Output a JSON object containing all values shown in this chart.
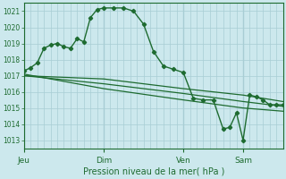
{
  "bg_color": "#cce8ed",
  "grid_color": "#a8cdd4",
  "line_color": "#1e6b30",
  "title": "Pression niveau de la mer( hPa )",
  "ylabel_vals": [
    1013,
    1014,
    1015,
    1016,
    1017,
    1018,
    1019,
    1020,
    1021
  ],
  "ylim": [
    1012.5,
    1021.5
  ],
  "xlim": [
    0,
    156
  ],
  "xtick_positions": [
    0,
    48,
    96,
    132
  ],
  "xtick_labels": [
    "Jeu",
    "Dim",
    "Ven",
    "Sam"
  ],
  "series1_x": [
    0,
    4,
    8,
    12,
    16,
    20,
    24,
    28,
    32,
    36,
    40,
    44,
    48,
    54,
    60,
    66,
    72,
    78,
    84,
    90,
    96,
    102,
    108,
    114,
    120,
    124,
    128,
    132,
    136,
    140,
    144,
    148,
    152,
    156
  ],
  "series1_y": [
    1017.3,
    1017.5,
    1017.8,
    1018.7,
    1018.9,
    1019.0,
    1018.8,
    1018.7,
    1019.3,
    1019.1,
    1020.6,
    1021.1,
    1021.2,
    1021.2,
    1021.2,
    1021.0,
    1020.2,
    1018.5,
    1017.6,
    1017.4,
    1017.2,
    1015.6,
    1015.5,
    1015.5,
    1013.7,
    1013.8,
    1014.7,
    1013.0,
    1015.8,
    1015.7,
    1015.5,
    1015.2,
    1015.2,
    1015.2
  ],
  "series2_x": [
    0,
    48,
    96,
    132,
    156
  ],
  "series2_y": [
    1017.0,
    1016.8,
    1016.2,
    1015.8,
    1015.4
  ],
  "series3_x": [
    0,
    48,
    96,
    132,
    156
  ],
  "series3_y": [
    1017.0,
    1016.5,
    1015.9,
    1015.4,
    1015.1
  ],
  "series4_x": [
    0,
    48,
    96,
    132,
    156
  ],
  "series4_y": [
    1017.1,
    1016.2,
    1015.5,
    1015.0,
    1014.8
  ]
}
